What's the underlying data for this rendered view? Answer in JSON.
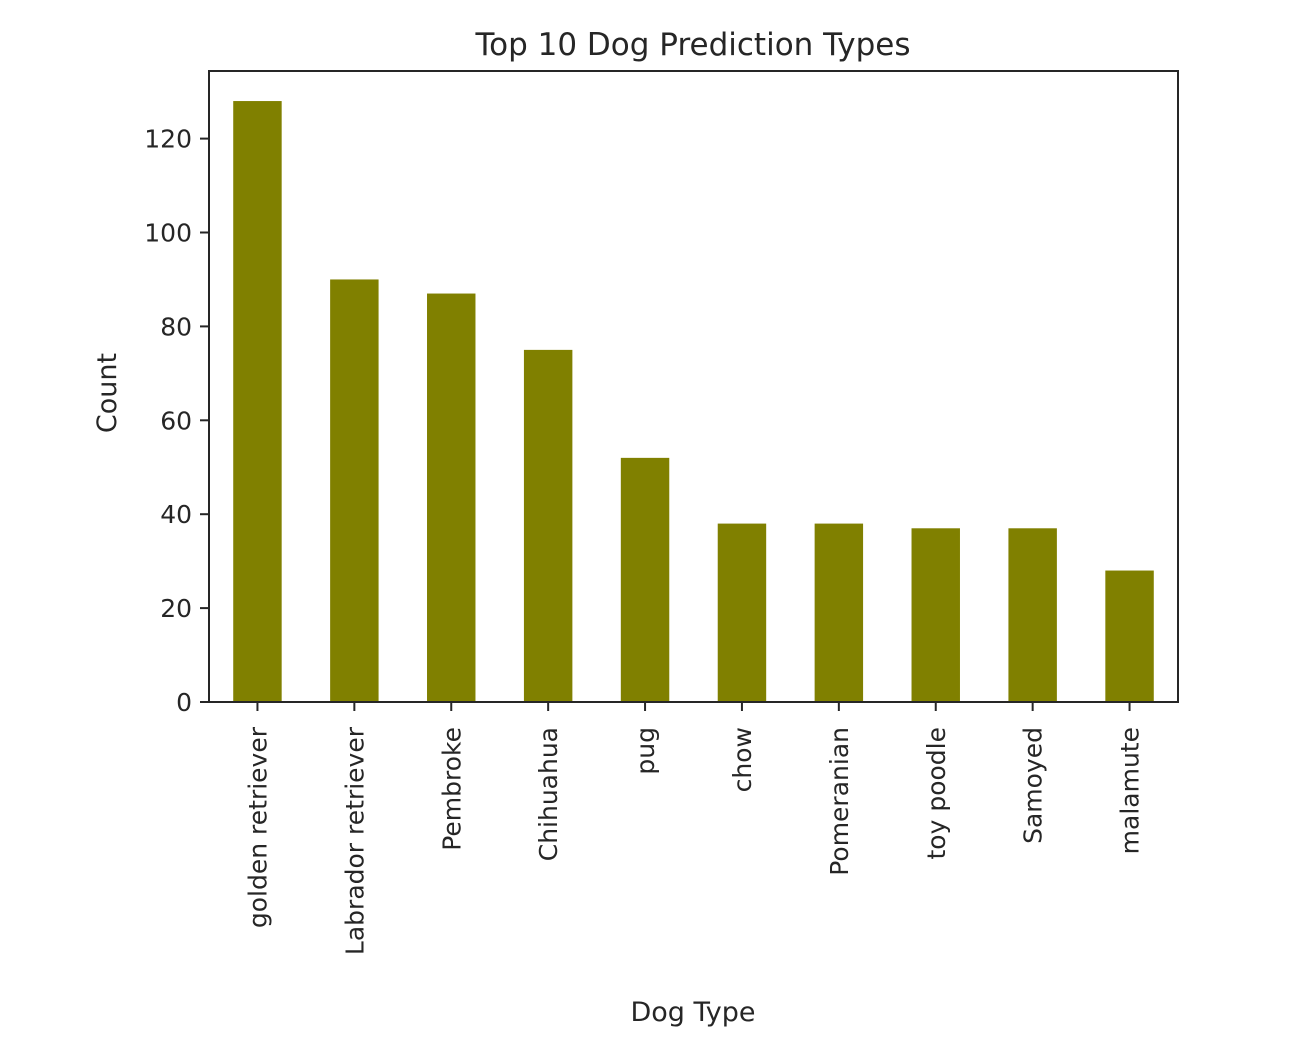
{
  "chart_data": {
    "type": "bar",
    "title": "Top 10 Dog Prediction Types",
    "xlabel": "Dog Type",
    "ylabel": "Count",
    "categories": [
      "golden retriever",
      "Labrador retriever",
      "Pembroke",
      "Chihuahua",
      "pug",
      "chow",
      "Pomeranian",
      "toy poodle",
      "Samoyed",
      "malamute"
    ],
    "values": [
      128,
      90,
      87,
      75,
      52,
      38,
      38,
      37,
      37,
      28
    ],
    "ylim": [
      0,
      134.4
    ],
    "yticks": [
      0,
      20,
      40,
      60,
      80,
      100,
      120
    ],
    "bar_color": "#808000",
    "grid": false,
    "legend": "none"
  }
}
